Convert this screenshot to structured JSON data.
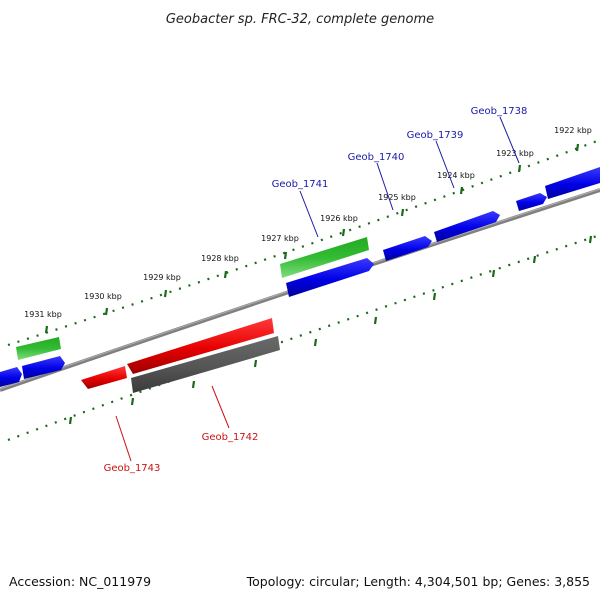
{
  "title": "Geobacter sp. FRC-32, complete genome",
  "footer": {
    "accession": "Accession: NC_011979",
    "summary": "Topology: circular; Length: 4,304,501 bp; Genes: 3,855"
  },
  "colors": {
    "forward_gene": "#0000e6",
    "reverse_gene": "#e60000",
    "rna_gene": "#33bb33",
    "pseudo_gene": "#555555",
    "backbone": "#808080",
    "tick": "#1a6a1a",
    "label_fwd": "#1a1aa6",
    "label_rev": "#c81414"
  },
  "tick_labels": [
    "1922 kbp",
    "1923 kbp",
    "1924 kbp",
    "1925 kbp",
    "1926 kbp",
    "1927 kbp",
    "1928 kbp",
    "1929 kbp",
    "1930 kbp",
    "1931 kbp"
  ],
  "gene_labels_forward": [
    "Geob_1738",
    "Geob_1739",
    "Geob_1740",
    "Geob_1741"
  ],
  "gene_labels_reverse": [
    "Geob_1742",
    "Geob_1743"
  ]
}
